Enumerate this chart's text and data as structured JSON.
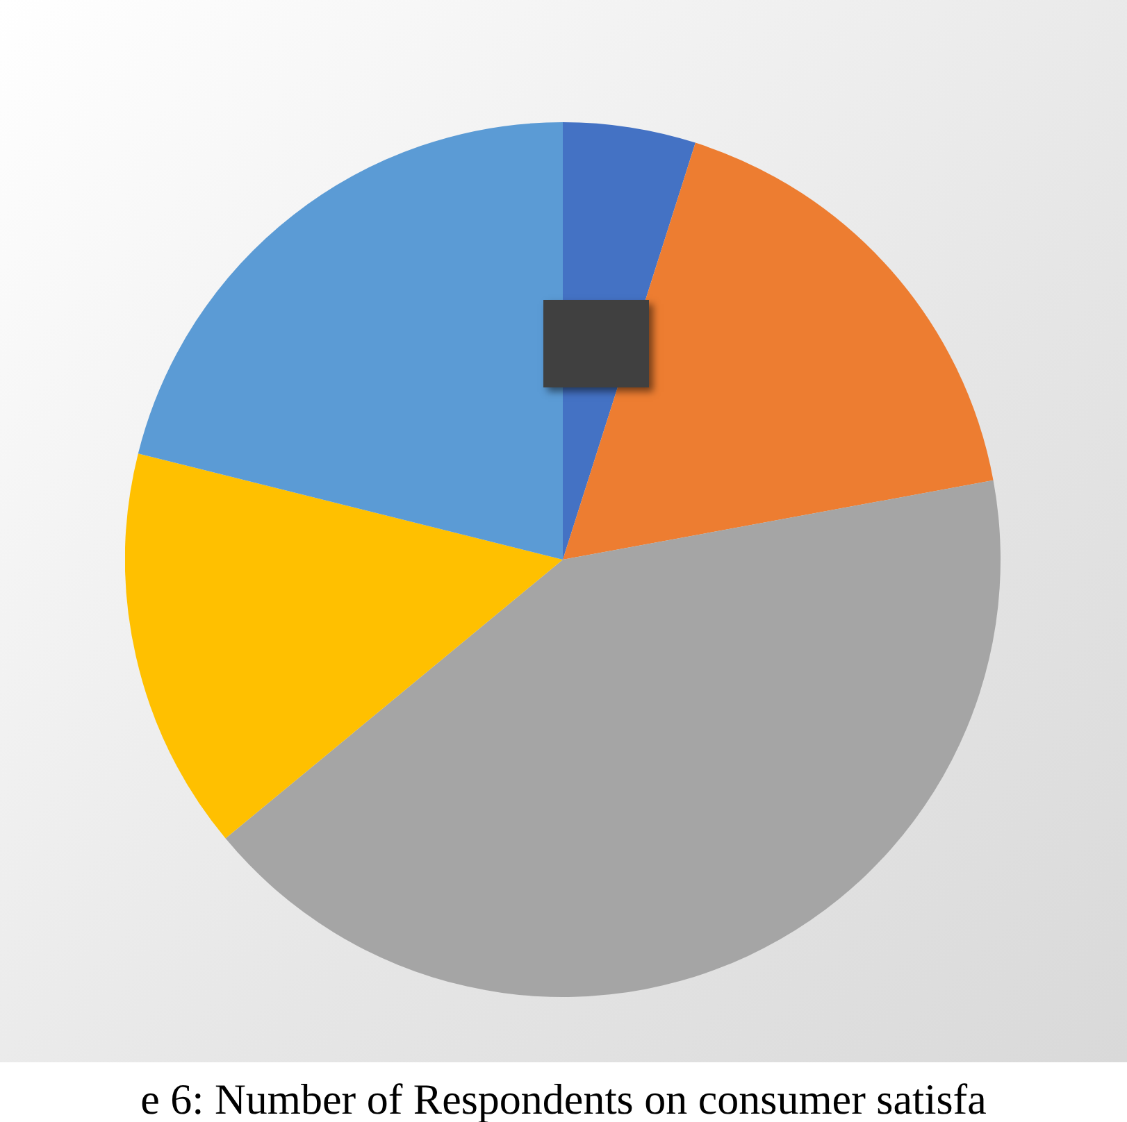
{
  "chart_data": {
    "type": "pie",
    "title": "e 6: Number of Respondents on consumer satisfa",
    "categories": [
      null,
      null,
      null,
      null,
      null
    ],
    "values": [
      4.9,
      17.2,
      41.9,
      14.9,
      21.1
    ],
    "colors": [
      "#4472c4",
      "#ed7d31",
      "#a5a5a5",
      "#ffc000",
      "#5b9bd5"
    ]
  }
}
